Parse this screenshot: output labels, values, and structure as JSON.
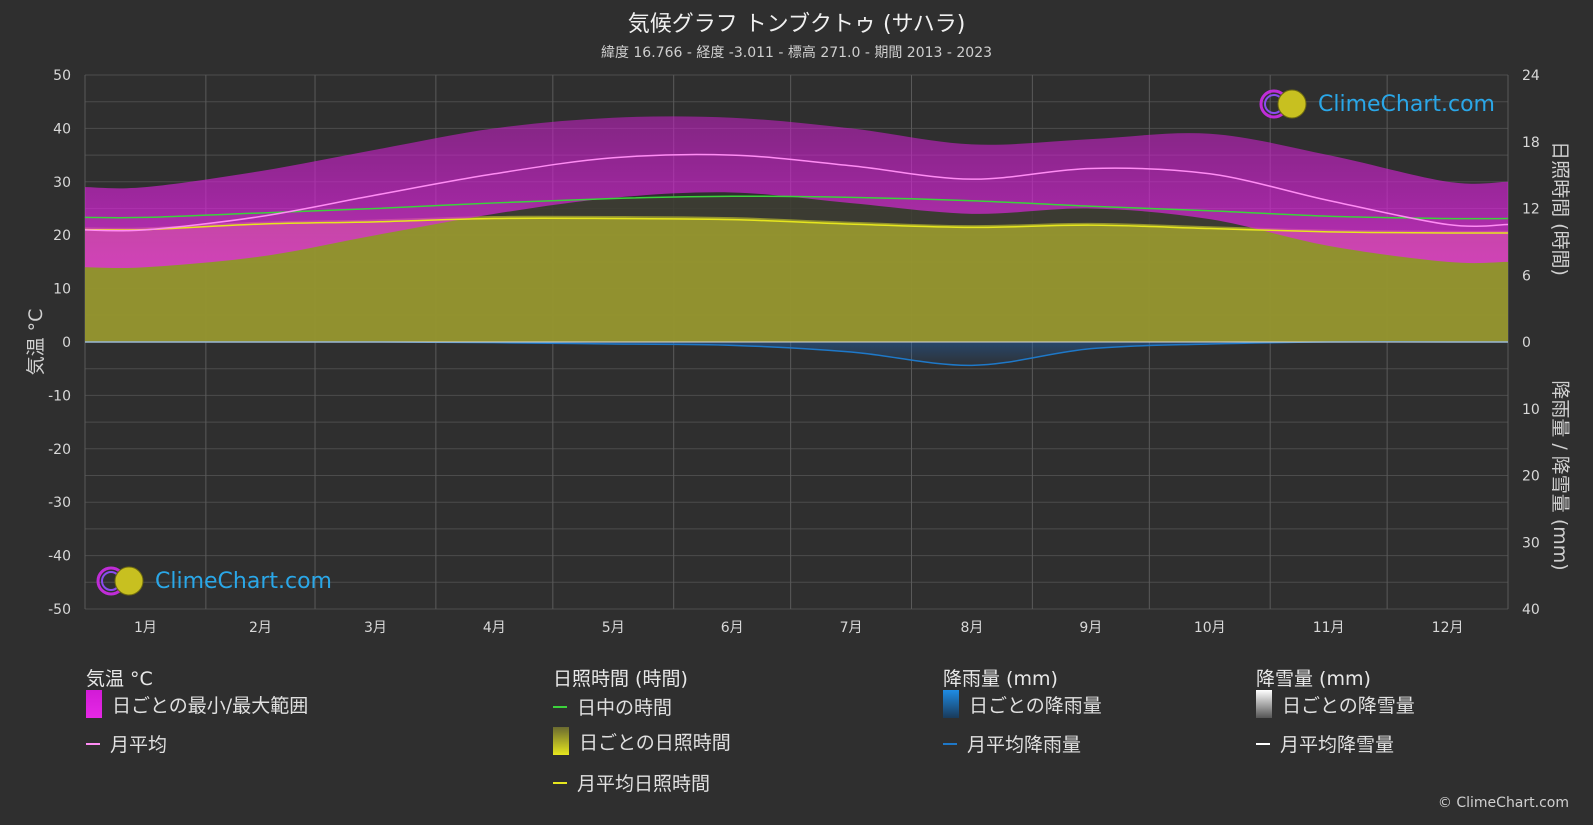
{
  "title": "気候グラフ トンブクトゥ (サハラ)",
  "subtitle": "緯度 16.766 - 経度 -3.011 - 標高 271.0 - 期間 2013 - 2023",
  "brand": {
    "logo_text": "ClimeChart.com",
    "copyright": "© ClimeChart.com"
  },
  "colors": {
    "background": "#2f2f2f",
    "temp_range": "#d21bd6",
    "temp_avg": "#ff8cf4",
    "daylight": "#3cd23c",
    "sunshine_fill": "#b3b32e",
    "sunshine_avg": "#e6e61e",
    "rain": "#1e78c8",
    "snow": "#ffffff"
  },
  "legend": {
    "temperature": {
      "heading": "気温 °C",
      "range_label": "日ごとの最小/最大範囲",
      "avg_label": "月平均"
    },
    "sunshine": {
      "heading": "日照時間 (時間)",
      "daylight_label": "日中の時間",
      "daily_label": "日ごとの日照時間",
      "avg_label": "月平均日照時間"
    },
    "rain": {
      "heading": "降雨量 (mm)",
      "daily_label": "日ごとの降雨量",
      "avg_label": "月平均降雨量"
    },
    "snow": {
      "heading": "降雪量 (mm)",
      "daily_label": "日ごとの降雪量",
      "avg_label": "月平均降雪量"
    }
  },
  "chart_data": {
    "type": "area",
    "categories": [
      "1月",
      "2月",
      "3月",
      "4月",
      "5月",
      "6月",
      "7月",
      "8月",
      "9月",
      "10月",
      "11月",
      "12月"
    ],
    "y_left": {
      "label": "気温 °C",
      "ylim": [
        -50,
        50
      ],
      "ticks": [
        50,
        40,
        30,
        20,
        10,
        0,
        -10,
        -20,
        -30,
        -40,
        -50
      ]
    },
    "y_right_top": {
      "label": "日照時間 (時間)",
      "ylim": [
        0,
        24
      ],
      "ticks": [
        24,
        18,
        12,
        6,
        0
      ]
    },
    "y_right_bottom": {
      "label": "降雨量 / 降雪量 (mm)",
      "ylim": [
        0,
        40
      ],
      "ticks": [
        10,
        20,
        30,
        40
      ]
    },
    "grid": true,
    "series": [
      {
        "name": "月平均",
        "unit": "°C",
        "values": [
          21,
          23.5,
          27.5,
          31.5,
          34.5,
          35,
          33,
          30.5,
          32.5,
          31.5,
          26.5,
          22
        ]
      },
      {
        "name": "日ごとの最小/最大範囲",
        "unit": "°C",
        "min": [
          14,
          16,
          20,
          24,
          27,
          28,
          26,
          24,
          25,
          23,
          18,
          15
        ],
        "max": [
          29,
          32,
          36,
          40,
          42,
          42,
          40,
          37,
          38,
          39,
          35,
          30
        ]
      },
      {
        "name": "日中の時間",
        "unit": "h",
        "values": [
          11.2,
          11.6,
          12.0,
          12.5,
          12.9,
          13.1,
          13.0,
          12.7,
          12.2,
          11.8,
          11.3,
          11.1
        ]
      },
      {
        "name": "月平均日照時間",
        "unit": "h",
        "values": [
          10.1,
          10.6,
          10.8,
          11.1,
          11.1,
          11.0,
          10.6,
          10.3,
          10.5,
          10.2,
          9.9,
          9.8
        ]
      },
      {
        "name": "月平均降雨量",
        "unit": "mm",
        "values": [
          0,
          0,
          0,
          0.1,
          0.3,
          0.5,
          1.5,
          3.5,
          1.0,
          0.3,
          0,
          0
        ]
      },
      {
        "name": "月平均降雪量",
        "unit": "mm",
        "values": [
          0,
          0,
          0,
          0,
          0,
          0,
          0,
          0,
          0,
          0,
          0,
          0
        ]
      }
    ]
  }
}
